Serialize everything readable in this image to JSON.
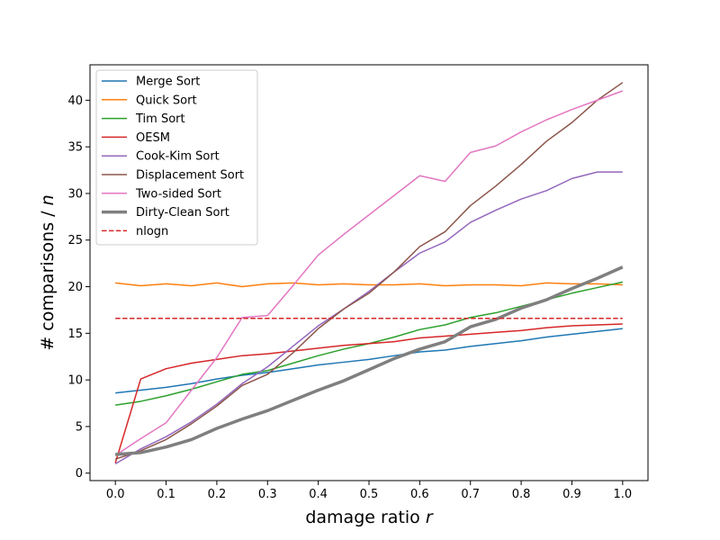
{
  "chart_data": {
    "type": "line",
    "title": "",
    "xlabel": "damage ratio",
    "xlabel_var": "r",
    "ylabel": "# comparisons /",
    "ylabel_var": "n",
    "xlim": [
      -0.05,
      1.05
    ],
    "ylim": [
      -0.8,
      43.8
    ],
    "xticks": [
      0.0,
      0.1,
      0.2,
      0.3,
      0.4,
      0.5,
      0.6,
      0.7,
      0.8,
      0.9,
      1.0
    ],
    "xtick_labels": [
      "0.0",
      "0.1",
      "0.2",
      "0.3",
      "0.4",
      "0.5",
      "0.6",
      "0.7",
      "0.8",
      "0.9",
      "1.0"
    ],
    "yticks": [
      0,
      5,
      10,
      15,
      20,
      25,
      30,
      35,
      40
    ],
    "ytick_labels": [
      "0",
      "5",
      "10",
      "15",
      "20",
      "25",
      "30",
      "35",
      "40"
    ],
    "grid": false,
    "legend_position": "top-left",
    "x": [
      0.0,
      0.05,
      0.1,
      0.15,
      0.2,
      0.25,
      0.3,
      0.35,
      0.4,
      0.45,
      0.5,
      0.55,
      0.6,
      0.65,
      0.7,
      0.75,
      0.8,
      0.85,
      0.9,
      0.95,
      1.0
    ],
    "series": [
      {
        "name": "Merge Sort",
        "color": "#1f77b4",
        "style": "solid",
        "width": 1.5,
        "values": [
          8.6,
          8.9,
          9.2,
          9.6,
          10.1,
          10.5,
          10.8,
          11.2,
          11.6,
          11.9,
          12.2,
          12.6,
          13.0,
          13.2,
          13.6,
          13.9,
          14.2,
          14.6,
          14.9,
          15.2,
          15.5
        ]
      },
      {
        "name": "Quick Sort",
        "color": "#ff7f0e",
        "style": "solid",
        "width": 1.5,
        "values": [
          20.4,
          20.1,
          20.3,
          20.1,
          20.4,
          20.0,
          20.3,
          20.4,
          20.2,
          20.3,
          20.2,
          20.2,
          20.3,
          20.1,
          20.2,
          20.2,
          20.1,
          20.4,
          20.3,
          20.3,
          20.2
        ]
      },
      {
        "name": "Tim Sort",
        "color": "#2ca02c",
        "style": "solid",
        "width": 1.5,
        "values": [
          7.3,
          7.7,
          8.3,
          9.0,
          9.8,
          10.6,
          11.0,
          11.8,
          12.6,
          13.3,
          13.9,
          14.6,
          15.4,
          15.9,
          16.7,
          17.2,
          17.9,
          18.6,
          19.3,
          19.9,
          20.5
        ]
      },
      {
        "name": "OESM",
        "color": "#d62728",
        "style": "solid",
        "width": 1.5,
        "values": [
          1.1,
          10.1,
          11.2,
          11.8,
          12.2,
          12.6,
          12.8,
          13.1,
          13.4,
          13.7,
          13.9,
          14.1,
          14.5,
          14.7,
          14.9,
          15.1,
          15.3,
          15.6,
          15.8,
          15.9,
          16.0
        ]
      },
      {
        "name": "Cook-Kim Sort",
        "color": "#9467bd",
        "style": "solid",
        "width": 1.5,
        "values": [
          1.0,
          2.6,
          3.9,
          5.5,
          7.4,
          9.6,
          11.4,
          13.6,
          15.8,
          17.6,
          19.5,
          21.6,
          23.6,
          24.8,
          26.9,
          28.2,
          29.4,
          30.3,
          31.6,
          32.3,
          32.3
        ]
      },
      {
        "name": "Displacement Sort",
        "color": "#8c564b",
        "style": "solid",
        "width": 1.5,
        "values": [
          1.5,
          2.4,
          3.6,
          5.3,
          7.2,
          9.4,
          10.6,
          12.9,
          15.5,
          17.6,
          19.3,
          21.6,
          24.3,
          25.9,
          28.7,
          30.8,
          33.1,
          35.6,
          37.6,
          40.0,
          41.9
        ]
      },
      {
        "name": "Two-sided Sort",
        "color": "#e377c2",
        "style": "solid",
        "width": 1.5,
        "values": [
          1.9,
          3.7,
          5.4,
          8.9,
          12.4,
          16.7,
          16.9,
          20.1,
          23.4,
          25.6,
          27.7,
          29.8,
          31.9,
          31.3,
          34.4,
          35.1,
          36.6,
          37.9,
          39.0,
          40.0,
          41.0
        ]
      },
      {
        "name": "Dirty-Clean Sort",
        "color": "#7f7f7f",
        "style": "solid",
        "width": 3.5,
        "values": [
          2.0,
          2.2,
          2.8,
          3.6,
          4.8,
          5.8,
          6.7,
          7.8,
          8.9,
          9.9,
          11.1,
          12.3,
          13.3,
          14.1,
          15.7,
          16.5,
          17.7,
          18.6,
          19.8,
          20.9,
          22.1
        ]
      },
      {
        "name": "nlogn",
        "color": "#d62728",
        "style": "dashed",
        "width": 1.5,
        "values": [
          16.6,
          16.6,
          16.6,
          16.6,
          16.6,
          16.6,
          16.6,
          16.6,
          16.6,
          16.6,
          16.6,
          16.6,
          16.6,
          16.6,
          16.6,
          16.6,
          16.6,
          16.6,
          16.6,
          16.6,
          16.6
        ]
      }
    ]
  }
}
